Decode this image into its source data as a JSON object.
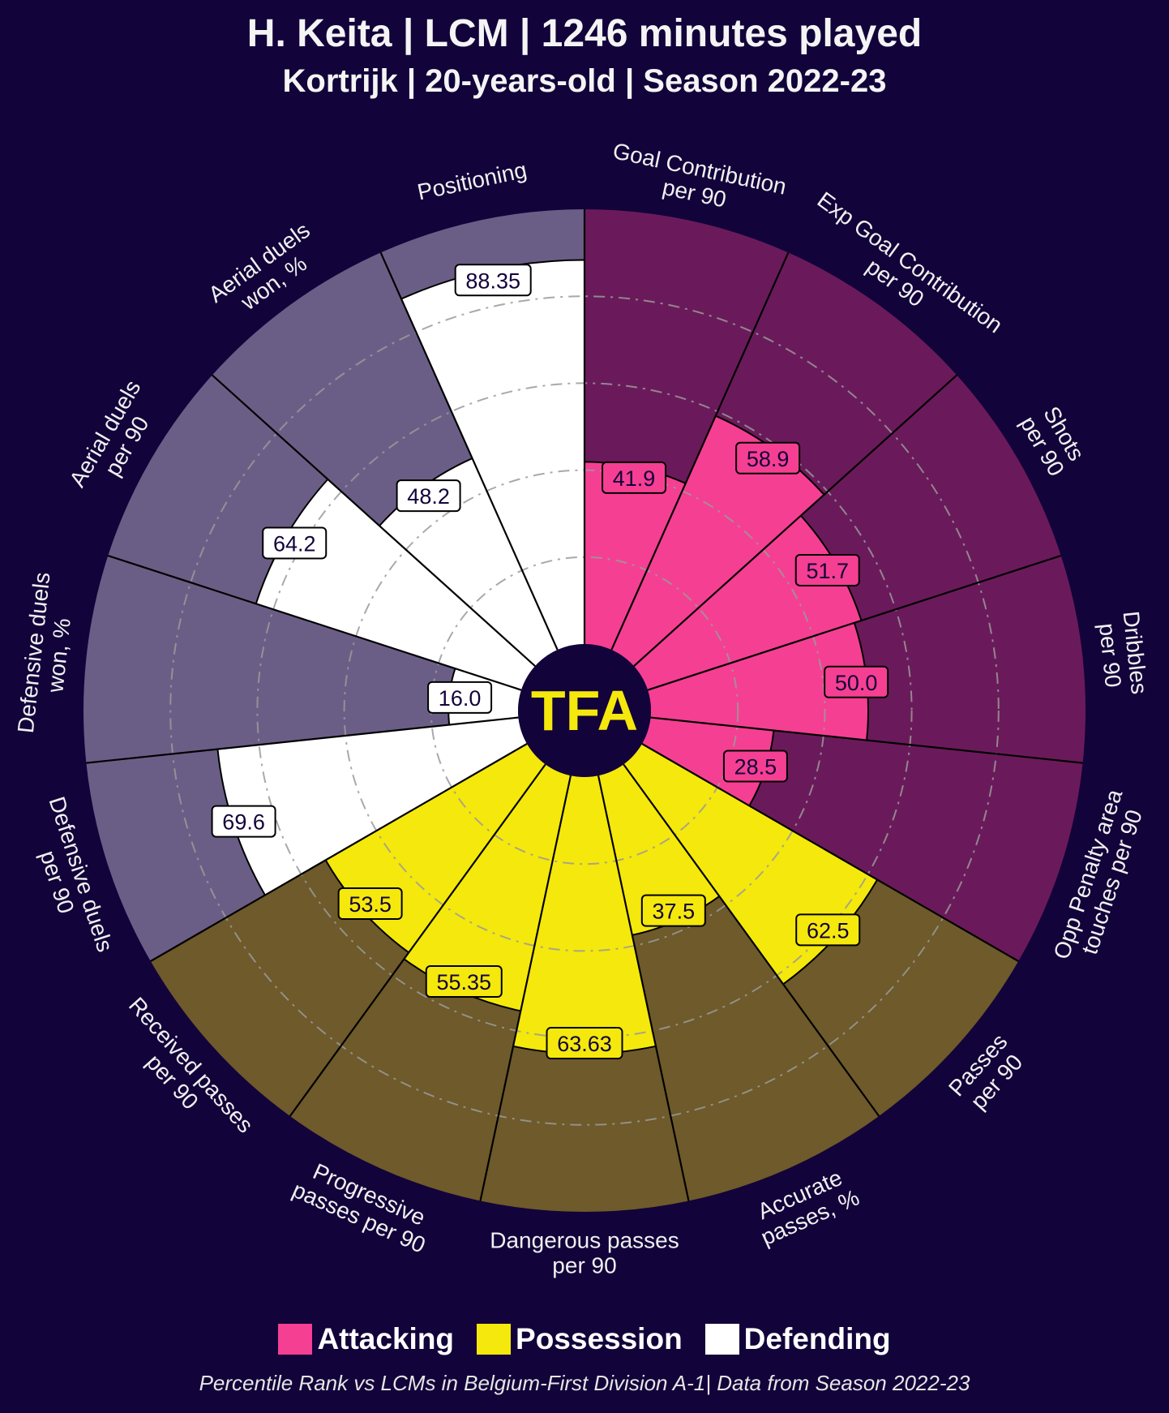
{
  "header": {
    "title": "H. Keita | LCM | 1246 minutes played",
    "subtitle": "Kortrijk | 20-years-old | Season 2022-23"
  },
  "logo_text": "TFA",
  "legend": [
    {
      "label": "Attacking",
      "color": "#f53f93"
    },
    {
      "label": "Possession",
      "color": "#f5e80c"
    },
    {
      "label": "Defending",
      "color": "#ffffff"
    }
  ],
  "footnote": "Percentile Rank vs LCMs in Belgium-First Division A-1| Data from Season 2022-23",
  "colors": {
    "background": "#12033a",
    "attacking_bg": "#6a1a5a",
    "possession_bg": "#6e5a2a",
    "defending_bg": "#6b5e86",
    "center": "#12033a",
    "logo": "#f5e80c"
  },
  "chart_data": {
    "type": "pizza",
    "scale": [
      0,
      100
    ],
    "slices": [
      {
        "label": "Goal Contribution\nper 90",
        "value": 41.9,
        "display": "41.9",
        "group": "Attacking"
      },
      {
        "label": "Exp Goal Contribution\nper 90",
        "value": 58.9,
        "display": "58.9",
        "group": "Attacking"
      },
      {
        "label": "Shots\nper 90",
        "value": 51.7,
        "display": "51.7",
        "group": "Attacking"
      },
      {
        "label": "Dribbles\nper 90",
        "value": 50.0,
        "display": "50.0",
        "group": "Attacking"
      },
      {
        "label": "Opp Penalty area\ntouches per 90",
        "value": 28.5,
        "display": "28.5",
        "group": "Attacking"
      },
      {
        "label": "Passes\nper 90",
        "value": 62.5,
        "display": "62.5",
        "group": "Possession"
      },
      {
        "label": "Accurate\npasses, %",
        "value": 37.5,
        "display": "37.5",
        "group": "Possession"
      },
      {
        "label": "Dangerous passes\nper 90",
        "value": 63.63,
        "display": "63.63",
        "group": "Possession"
      },
      {
        "label": "Progressive\npasses per 90",
        "value": 55.35,
        "display": "55.35",
        "group": "Possession"
      },
      {
        "label": "Received passes\nper 90",
        "value": 53.5,
        "display": "53.5",
        "group": "Possession"
      },
      {
        "label": "Defensive duels\nper 90",
        "value": 69.6,
        "display": "69.6",
        "group": "Defending"
      },
      {
        "label": "Defensive duels\nwon, %",
        "value": 16.0,
        "display": "16.0",
        "group": "Defending"
      },
      {
        "label": "Aerial duels\nper 90",
        "value": 64.2,
        "display": "64.2",
        "group": "Defending"
      },
      {
        "label": "Aerial duels\nwon, %",
        "value": 48.2,
        "display": "48.2",
        "group": "Defending"
      },
      {
        "label": "Positioning",
        "value": 88.35,
        "display": "88.35",
        "group": "Defending"
      }
    ]
  }
}
